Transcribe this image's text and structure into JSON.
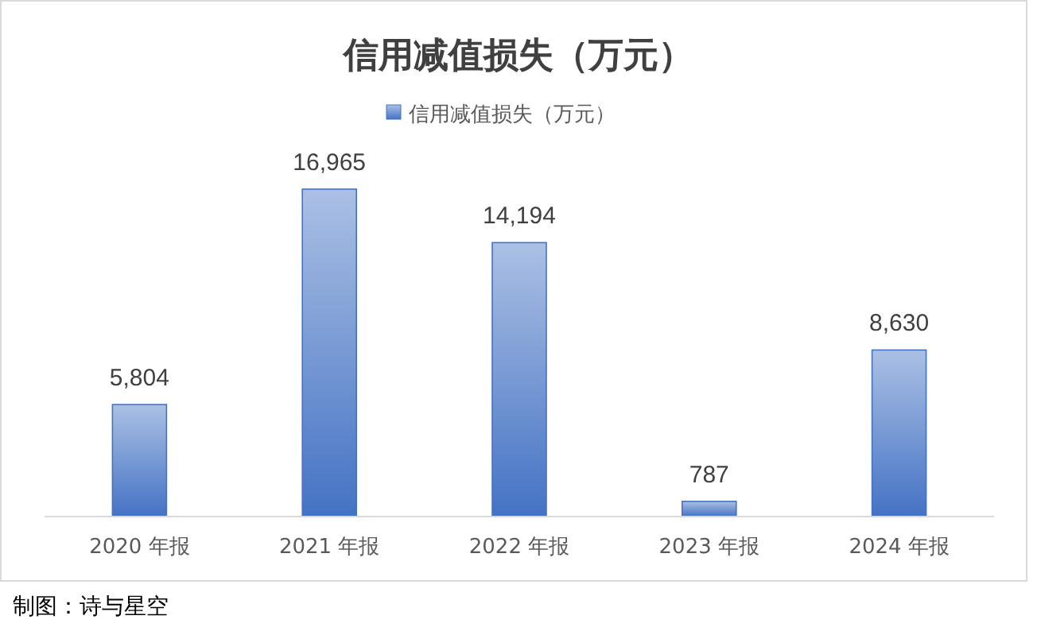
{
  "chart_data": {
    "type": "bar",
    "title": "信用减值损失（万元）",
    "categories": [
      "2020 年报",
      "2021 年报",
      "2022 年报",
      "2023 年报",
      "2024 年报"
    ],
    "series": [
      {
        "name": "信用减值损失（万元）",
        "color": "#4472c4",
        "values": [
          5804,
          16965,
          14194,
          787,
          8630
        ],
        "value_labels": [
          "5,804",
          "16,965",
          "14,194",
          "787",
          "8,630"
        ]
      }
    ],
    "legend": "top",
    "annotations": [
      "制图：诗与星空"
    ]
  }
}
